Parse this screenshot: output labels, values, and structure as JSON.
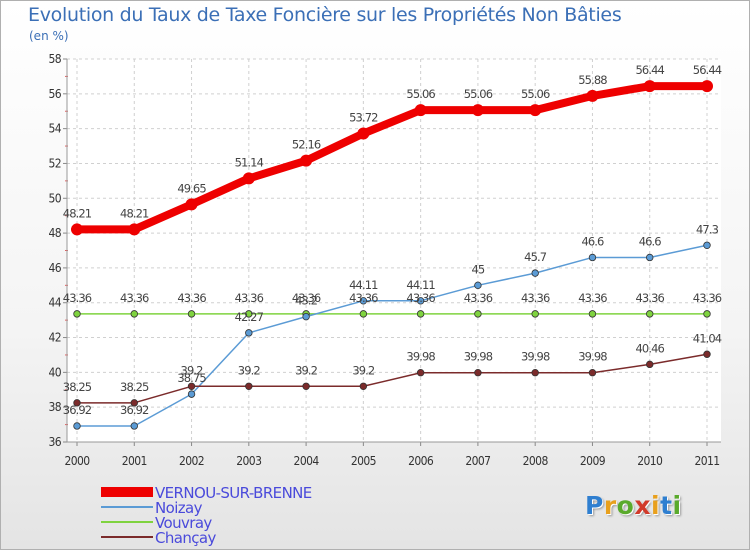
{
  "title": "Evolution du Taux de Taxe Foncière sur les Propriétés Non Bâties",
  "unit_label": "(en %)",
  "logo": {
    "letters": [
      {
        "ch": "P",
        "color": "#2f7fd0"
      },
      {
        "ch": "r",
        "color": "#e8a01d"
      },
      {
        "ch": "o",
        "color": "#5aaa2c"
      },
      {
        "ch": "x",
        "color": "#d13a2a"
      },
      {
        "ch": "i",
        "color": "#e8a01d"
      },
      {
        "ch": "t",
        "color": "#2f7fd0"
      },
      {
        "ch": "i",
        "color": "#5aaa2c"
      }
    ]
  },
  "chart_data": {
    "type": "line",
    "x": [
      "2000",
      "2001",
      "2002",
      "2003",
      "2004",
      "2005",
      "2006",
      "2007",
      "2008",
      "2009",
      "2010",
      "2011"
    ],
    "ylim": [
      36,
      58
    ],
    "yticks": [
      36,
      38,
      40,
      42,
      44,
      46,
      48,
      50,
      52,
      54,
      56,
      58
    ],
    "grid": true,
    "legend_position": "bottom-left",
    "series": [
      {
        "name": "VERNOU-SUR-BRENNE",
        "color": "#ee0000",
        "values": [
          48.21,
          48.21,
          49.65,
          51.14,
          52.16,
          53.72,
          55.06,
          55.06,
          55.06,
          55.88,
          56.44,
          56.44
        ],
        "labels": [
          "48.21",
          "48.21",
          "49.65",
          "51.14",
          "52.16",
          "53.72",
          "55.06",
          "55.06",
          "55.06",
          "55.88",
          "56.44",
          "56.44"
        ]
      },
      {
        "name": "Noizay",
        "color": "#5b9bd5",
        "values": [
          36.92,
          36.92,
          38.75,
          42.27,
          43.2,
          44.11,
          44.11,
          45,
          45.7,
          46.6,
          46.6,
          47.3
        ],
        "labels": [
          "36.92",
          "36.92",
          "38.75",
          "42.27",
          "43.2",
          "44.11",
          "44.11",
          "45",
          "45.7",
          "46.6",
          "46.6",
          "47.3"
        ]
      },
      {
        "name": "Vouvray",
        "color": "#7fd33f",
        "values": [
          43.36,
          43.36,
          43.36,
          43.36,
          43.36,
          43.36,
          43.36,
          43.36,
          43.36,
          43.36,
          43.36,
          43.36
        ],
        "labels": [
          "43.36",
          "43.36",
          "43.36",
          "43.36",
          "43.36",
          "43.36",
          "43.36",
          "43.36",
          "43.36",
          "43.36",
          "43.36",
          "43.36"
        ]
      },
      {
        "name": "Chançay",
        "color": "#7b2b2b",
        "values": [
          38.25,
          38.25,
          39.2,
          39.2,
          39.2,
          39.2,
          39.98,
          39.98,
          39.98,
          39.98,
          40.46,
          41.04
        ],
        "labels": [
          "38.25",
          "38.25",
          "39.2",
          "39.2",
          "39.2",
          "39.2",
          "39.98",
          "39.98",
          "39.98",
          "39.98",
          "40.46",
          "41.04"
        ]
      }
    ]
  }
}
